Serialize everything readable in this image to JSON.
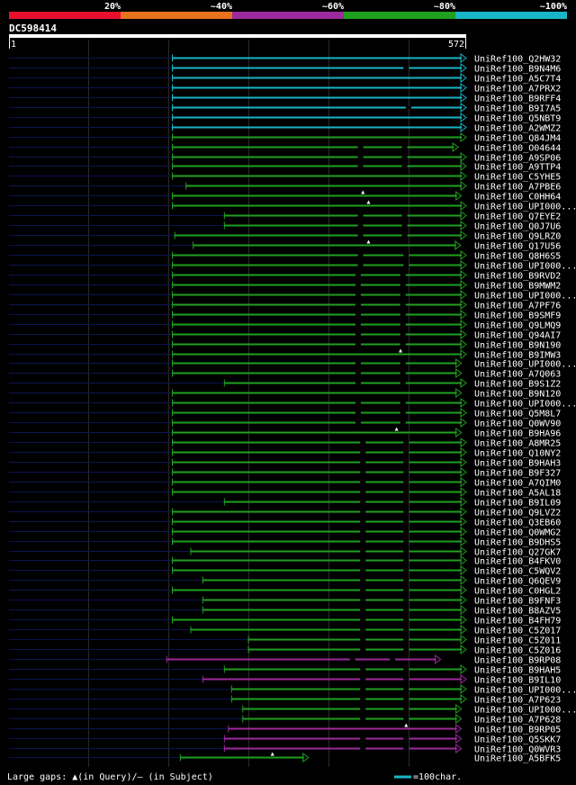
{
  "query": {
    "id": "DC598414",
    "start": "1",
    "end": "572"
  },
  "scale_bar": {
    "labels": [
      "20%",
      "~40%",
      "~60%",
      "~80%",
      "~100%"
    ],
    "colors": [
      "#e8102e",
      "#e8731e",
      "#9c2a9c",
      "#1fa01f",
      "#18b5c6"
    ]
  },
  "colors": {
    "query": "#0c1450",
    "cyan": "#18b5c6",
    "green": "#1fa01f",
    "magenta": "#9c2a9c",
    "grid": "#2a2a2a"
  },
  "footer": {
    "gaps_text": "Large gaps: ▲(in Query)/– (in Subject)",
    "legend_text": "=100char."
  },
  "chart_data": {
    "type": "alignment",
    "x_range": [
      1,
      572
    ],
    "hits": [
      {
        "name": "UniRef100_Q2HW32",
        "start": 205,
        "end": 572,
        "color": "cyan",
        "gaps": []
      },
      {
        "name": "UniRef100_B9N4M6",
        "start": 205,
        "end": 572,
        "color": "cyan",
        "gaps": [
          {
            "t": "d",
            "p": 497
          }
        ]
      },
      {
        "name": "UniRef100_A5C7T4",
        "start": 205,
        "end": 572,
        "color": "cyan",
        "gaps": []
      },
      {
        "name": "UniRef100_A7PRX2",
        "start": 205,
        "end": 572,
        "color": "cyan",
        "gaps": []
      },
      {
        "name": "UniRef100_B9RFF4",
        "start": 205,
        "end": 572,
        "color": "cyan",
        "gaps": []
      },
      {
        "name": "UniRef100_B9I7A5",
        "start": 205,
        "end": 572,
        "color": "cyan",
        "gaps": [
          {
            "t": "d",
            "p": 500
          }
        ]
      },
      {
        "name": "UniRef100_Q5NBT9",
        "start": 205,
        "end": 572,
        "color": "cyan",
        "gaps": []
      },
      {
        "name": "UniRef100_A2WMZ2",
        "start": 205,
        "end": 572,
        "color": "cyan",
        "gaps": []
      },
      {
        "name": "UniRef100_Q84JM4",
        "start": 205,
        "end": 572,
        "color": "green",
        "gaps": []
      },
      {
        "name": "UniRef100_O04644",
        "start": 205,
        "end": 562,
        "color": "green",
        "gaps": [
          {
            "t": "d",
            "p": 440
          },
          {
            "t": "d",
            "p": 495
          }
        ]
      },
      {
        "name": "UniRef100_A9SP06",
        "start": 205,
        "end": 572,
        "color": "green",
        "gaps": [
          {
            "t": "d",
            "p": 440
          },
          {
            "t": "d",
            "p": 495
          }
        ]
      },
      {
        "name": "UniRef100_A9TTP4",
        "start": 205,
        "end": 572,
        "color": "green",
        "gaps": [
          {
            "t": "d",
            "p": 440
          },
          {
            "t": "d",
            "p": 495
          }
        ]
      },
      {
        "name": "UniRef100_C5YHE5",
        "start": 205,
        "end": 572,
        "color": "green",
        "gaps": []
      },
      {
        "name": "UniRef100_A7PBE6",
        "start": 222,
        "end": 572,
        "color": "green",
        "gaps": []
      },
      {
        "name": "UniRef100_C0HH64",
        "start": 205,
        "end": 566,
        "color": "green",
        "gaps": [
          {
            "t": "q",
            "p": 443
          }
        ]
      },
      {
        "name": "UniRef100_UPI000...",
        "start": 205,
        "end": 572,
        "color": "green",
        "gaps": [
          {
            "t": "q",
            "p": 450
          }
        ]
      },
      {
        "name": "UniRef100_Q7EYE2",
        "start": 270,
        "end": 572,
        "color": "green",
        "gaps": [
          {
            "t": "d",
            "p": 440
          },
          {
            "t": "d",
            "p": 495
          }
        ]
      },
      {
        "name": "UniRef100_Q0J7U6",
        "start": 270,
        "end": 572,
        "color": "green",
        "gaps": [
          {
            "t": "d",
            "p": 440
          },
          {
            "t": "d",
            "p": 495
          }
        ]
      },
      {
        "name": "UniRef100_Q9LRZ0",
        "start": 208,
        "end": 572,
        "color": "green",
        "gaps": [
          {
            "t": "d",
            "p": 440
          },
          {
            "t": "d",
            "p": 495
          }
        ]
      },
      {
        "name": "UniRef100_Q17U56",
        "start": 231,
        "end": 565,
        "color": "green",
        "gaps": [
          {
            "t": "q",
            "p": 450
          }
        ]
      },
      {
        "name": "UniRef100_Q8H6S5",
        "start": 205,
        "end": 572,
        "color": "green",
        "gaps": [
          {
            "t": "d",
            "p": 440
          },
          {
            "t": "d",
            "p": 497
          }
        ]
      },
      {
        "name": "UniRef100_UPI000...",
        "start": 205,
        "end": 572,
        "color": "green",
        "gaps": [
          {
            "t": "d",
            "p": 440
          },
          {
            "t": "d",
            "p": 497
          }
        ]
      },
      {
        "name": "UniRef100_B9RVD2",
        "start": 205,
        "end": 572,
        "color": "green",
        "gaps": [
          {
            "t": "d",
            "p": 437
          },
          {
            "t": "d",
            "p": 493
          }
        ]
      },
      {
        "name": "UniRef100_B9MWM2",
        "start": 205,
        "end": 572,
        "color": "green",
        "gaps": [
          {
            "t": "d",
            "p": 437
          },
          {
            "t": "d",
            "p": 493
          }
        ]
      },
      {
        "name": "UniRef100_UPI000...",
        "start": 205,
        "end": 572,
        "color": "green",
        "gaps": [
          {
            "t": "d",
            "p": 437
          },
          {
            "t": "d",
            "p": 493
          }
        ]
      },
      {
        "name": "UniRef100_A7PF76",
        "start": 205,
        "end": 572,
        "color": "green",
        "gaps": [
          {
            "t": "d",
            "p": 437
          },
          {
            "t": "d",
            "p": 493
          }
        ]
      },
      {
        "name": "UniRef100_B9SMF9",
        "start": 205,
        "end": 572,
        "color": "green",
        "gaps": [
          {
            "t": "d",
            "p": 437
          },
          {
            "t": "d",
            "p": 493
          }
        ]
      },
      {
        "name": "UniRef100_Q9LMQ9",
        "start": 205,
        "end": 572,
        "color": "green",
        "gaps": [
          {
            "t": "d",
            "p": 437
          },
          {
            "t": "d",
            "p": 493
          }
        ]
      },
      {
        "name": "UniRef100_Q94AI7",
        "start": 205,
        "end": 572,
        "color": "green",
        "gaps": [
          {
            "t": "d",
            "p": 437
          },
          {
            "t": "d",
            "p": 493
          }
        ]
      },
      {
        "name": "UniRef100_B9N190",
        "start": 205,
        "end": 572,
        "color": "green",
        "gaps": [
          {
            "t": "d",
            "p": 437
          },
          {
            "t": "d",
            "p": 493
          }
        ]
      },
      {
        "name": "UniRef100_B9IMW3",
        "start": 205,
        "end": 572,
        "color": "green",
        "gaps": [
          {
            "t": "q",
            "p": 490
          }
        ]
      },
      {
        "name": "UniRef100_UPI000...",
        "start": 205,
        "end": 566,
        "color": "green",
        "gaps": [
          {
            "t": "d",
            "p": 437
          },
          {
            "t": "d",
            "p": 493
          }
        ]
      },
      {
        "name": "UniRef100_A7Q063",
        "start": 205,
        "end": 566,
        "color": "green",
        "gaps": [
          {
            "t": "d",
            "p": 437
          },
          {
            "t": "d",
            "p": 493
          }
        ]
      },
      {
        "name": "UniRef100_B9S1Z2",
        "start": 270,
        "end": 572,
        "color": "green",
        "gaps": [
          {
            "t": "d",
            "p": 437
          },
          {
            "t": "d",
            "p": 493
          }
        ]
      },
      {
        "name": "UniRef100_B9N120",
        "start": 205,
        "end": 566,
        "color": "green",
        "gaps": []
      },
      {
        "name": "UniRef100_UPI000...",
        "start": 205,
        "end": 572,
        "color": "green",
        "gaps": [
          {
            "t": "d",
            "p": 437
          },
          {
            "t": "d",
            "p": 493
          }
        ]
      },
      {
        "name": "UniRef100_Q5M8L7",
        "start": 205,
        "end": 572,
        "color": "green",
        "gaps": [
          {
            "t": "d",
            "p": 437
          },
          {
            "t": "d",
            "p": 493
          }
        ]
      },
      {
        "name": "UniRef100_Q0WV90",
        "start": 205,
        "end": 572,
        "color": "green",
        "gaps": [
          {
            "t": "d",
            "p": 437
          },
          {
            "t": "d",
            "p": 493
          }
        ]
      },
      {
        "name": "UniRef100_B9HA96",
        "start": 205,
        "end": 566,
        "color": "green",
        "gaps": [
          {
            "t": "q",
            "p": 485
          }
        ]
      },
      {
        "name": "UniRef100_A8MR25",
        "start": 205,
        "end": 572,
        "color": "green",
        "gaps": [
          {
            "t": "d",
            "p": 443
          },
          {
            "t": "d",
            "p": 497
          }
        ]
      },
      {
        "name": "UniRef100_Q10NY2",
        "start": 205,
        "end": 572,
        "color": "green",
        "gaps": [
          {
            "t": "d",
            "p": 443
          },
          {
            "t": "d",
            "p": 497
          }
        ]
      },
      {
        "name": "UniRef100_B9HAH3",
        "start": 205,
        "end": 572,
        "color": "green",
        "gaps": [
          {
            "t": "d",
            "p": 443
          },
          {
            "t": "d",
            "p": 497
          }
        ]
      },
      {
        "name": "UniRef100_B9F327",
        "start": 205,
        "end": 572,
        "color": "green",
        "gaps": [
          {
            "t": "d",
            "p": 443
          },
          {
            "t": "d",
            "p": 497
          }
        ]
      },
      {
        "name": "UniRef100_A7QIM0",
        "start": 205,
        "end": 572,
        "color": "green",
        "gaps": [
          {
            "t": "d",
            "p": 443
          },
          {
            "t": "d",
            "p": 497
          }
        ]
      },
      {
        "name": "UniRef100_A5AL18",
        "start": 205,
        "end": 572,
        "color": "green",
        "gaps": [
          {
            "t": "d",
            "p": 443
          },
          {
            "t": "d",
            "p": 497
          }
        ]
      },
      {
        "name": "UniRef100_B9IL09",
        "start": 270,
        "end": 572,
        "color": "green",
        "gaps": [
          {
            "t": "d",
            "p": 443
          },
          {
            "t": "d",
            "p": 497
          }
        ]
      },
      {
        "name": "UniRef100_Q9LVZ2",
        "start": 205,
        "end": 572,
        "color": "green",
        "gaps": [
          {
            "t": "d",
            "p": 443
          },
          {
            "t": "d",
            "p": 497
          }
        ]
      },
      {
        "name": "UniRef100_Q3EB60",
        "start": 205,
        "end": 572,
        "color": "green",
        "gaps": [
          {
            "t": "d",
            "p": 443
          },
          {
            "t": "d",
            "p": 497
          }
        ]
      },
      {
        "name": "UniRef100_Q0WMG2",
        "start": 205,
        "end": 572,
        "color": "green",
        "gaps": [
          {
            "t": "d",
            "p": 443
          },
          {
            "t": "d",
            "p": 497
          }
        ]
      },
      {
        "name": "UniRef100_B9DHS5",
        "start": 205,
        "end": 572,
        "color": "green",
        "gaps": [
          {
            "t": "d",
            "p": 443
          },
          {
            "t": "d",
            "p": 497
          }
        ]
      },
      {
        "name": "UniRef100_Q27GK7",
        "start": 228,
        "end": 572,
        "color": "green",
        "gaps": [
          {
            "t": "d",
            "p": 443
          },
          {
            "t": "d",
            "p": 497
          }
        ]
      },
      {
        "name": "UniRef100_B4FKV0",
        "start": 205,
        "end": 572,
        "color": "green",
        "gaps": [
          {
            "t": "d",
            "p": 443
          },
          {
            "t": "d",
            "p": 497
          }
        ]
      },
      {
        "name": "UniRef100_C5WQV2",
        "start": 205,
        "end": 572,
        "color": "green",
        "gaps": [
          {
            "t": "d",
            "p": 443
          },
          {
            "t": "d",
            "p": 497
          }
        ]
      },
      {
        "name": "UniRef100_Q6QEV9",
        "start": 243,
        "end": 572,
        "color": "green",
        "gaps": [
          {
            "t": "d",
            "p": 443
          },
          {
            "t": "d",
            "p": 497
          }
        ]
      },
      {
        "name": "UniRef100_C0HGL2",
        "start": 205,
        "end": 572,
        "color": "green",
        "gaps": [
          {
            "t": "d",
            "p": 443
          },
          {
            "t": "d",
            "p": 497
          }
        ]
      },
      {
        "name": "UniRef100_B9FNF3",
        "start": 243,
        "end": 572,
        "color": "green",
        "gaps": [
          {
            "t": "d",
            "p": 443
          },
          {
            "t": "d",
            "p": 497
          }
        ]
      },
      {
        "name": "UniRef100_B8AZV5",
        "start": 243,
        "end": 572,
        "color": "green",
        "gaps": [
          {
            "t": "d",
            "p": 443
          },
          {
            "t": "d",
            "p": 497
          }
        ]
      },
      {
        "name": "UniRef100_B4FH79",
        "start": 205,
        "end": 572,
        "color": "green",
        "gaps": [
          {
            "t": "d",
            "p": 443
          },
          {
            "t": "d",
            "p": 497
          }
        ]
      },
      {
        "name": "UniRef100_C5Z017",
        "start": 228,
        "end": 572,
        "color": "green",
        "gaps": [
          {
            "t": "d",
            "p": 443
          },
          {
            "t": "d",
            "p": 497
          }
        ]
      },
      {
        "name": "UniRef100_C5Z011",
        "start": 300,
        "end": 572,
        "color": "green",
        "gaps": [
          {
            "t": "d",
            "p": 443
          },
          {
            "t": "d",
            "p": 497
          }
        ]
      },
      {
        "name": "UniRef100_C5Z016",
        "start": 300,
        "end": 572,
        "color": "green",
        "gaps": [
          {
            "t": "d",
            "p": 443
          },
          {
            "t": "d",
            "p": 497
          }
        ]
      },
      {
        "name": "UniRef100_B9RP08",
        "start": 198,
        "end": 540,
        "color": "magenta",
        "gaps": [
          {
            "t": "d",
            "p": 430
          },
          {
            "t": "d",
            "p": 480
          }
        ]
      },
      {
        "name": "UniRef100_B9HAH5",
        "start": 270,
        "end": 572,
        "color": "green",
        "gaps": [
          {
            "t": "d",
            "p": 443
          },
          {
            "t": "d",
            "p": 497
          }
        ]
      },
      {
        "name": "UniRef100_B9IL10",
        "start": 243,
        "end": 572,
        "color": "magenta",
        "gaps": [
          {
            "t": "d",
            "p": 443
          },
          {
            "t": "d",
            "p": 497
          }
        ]
      },
      {
        "name": "UniRef100_UPI000...",
        "start": 279,
        "end": 572,
        "color": "green",
        "gaps": [
          {
            "t": "d",
            "p": 443
          },
          {
            "t": "d",
            "p": 497
          }
        ]
      },
      {
        "name": "UniRef100_A7P623",
        "start": 279,
        "end": 572,
        "color": "green",
        "gaps": [
          {
            "t": "d",
            "p": 443
          },
          {
            "t": "d",
            "p": 497
          }
        ]
      },
      {
        "name": "UniRef100_UPI000...",
        "start": 293,
        "end": 566,
        "color": "green",
        "gaps": [
          {
            "t": "d",
            "p": 443
          },
          {
            "t": "d",
            "p": 497
          }
        ]
      },
      {
        "name": "UniRef100_A7P628",
        "start": 293,
        "end": 566,
        "color": "green",
        "gaps": [
          {
            "t": "d",
            "p": 443
          },
          {
            "t": "d",
            "p": 497
          }
        ]
      },
      {
        "name": "UniRef100_B9RP05",
        "start": 275,
        "end": 566,
        "color": "magenta",
        "gaps": [
          {
            "t": "q",
            "p": 497
          }
        ]
      },
      {
        "name": "UniRef100_Q5SKK7",
        "start": 270,
        "end": 566,
        "color": "magenta",
        "gaps": [
          {
            "t": "d",
            "p": 443
          },
          {
            "t": "d",
            "p": 497
          }
        ]
      },
      {
        "name": "UniRef100_Q0WVR3",
        "start": 270,
        "end": 566,
        "color": "magenta",
        "gaps": [
          {
            "t": "d",
            "p": 443
          },
          {
            "t": "d",
            "p": 497
          }
        ]
      },
      {
        "name": "UniRef100_A5BFK5",
        "start": 215,
        "end": 375,
        "color": "green",
        "gaps": [
          {
            "t": "q",
            "p": 330
          }
        ]
      }
    ]
  }
}
